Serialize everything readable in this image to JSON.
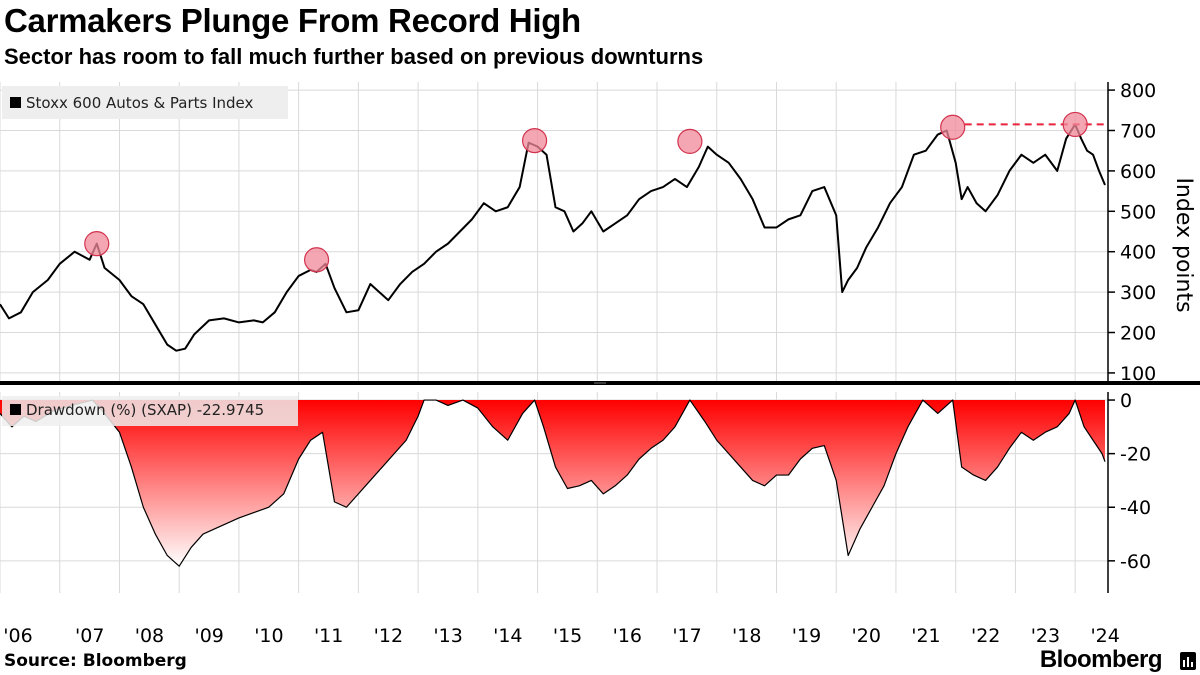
{
  "header": {
    "title": "Carmakers Plunge From Record High",
    "subtitle": "Sector has room to fall much further based on previous downturns"
  },
  "footer": {
    "source": "Source: Bloomberg",
    "brand": "Bloomberg"
  },
  "colors": {
    "line": "#000000",
    "grid": "#d9d9d9",
    "drawdown_fill_top": "#ff0000",
    "drawdown_fill_bottom": "#ffffff",
    "peak_marker": "#f08a9a",
    "dashed_line": "#e8243c",
    "legend_bg": "#eeeeee"
  },
  "chart_data": [
    {
      "type": "line",
      "legend": "Stoxx 600 Autos & Parts Index",
      "ylabel": "Index points",
      "ylim": [
        80,
        820
      ],
      "yticks": [
        "100",
        "200",
        "300",
        "400",
        "500",
        "600",
        "700",
        "800"
      ],
      "x_tick_labels": [
        "'06",
        "'07",
        "'08",
        "'09",
        "'10",
        "'11",
        "'12",
        "'13",
        "'14",
        "'15",
        "'16",
        "'17",
        "'18",
        "'19",
        "'20",
        "'21",
        "'22",
        "'23",
        "'24"
      ],
      "xlim": [
        2006.0,
        2024.55
      ],
      "grid": true,
      "legend_position": "top-left",
      "x": [
        2006.0,
        2006.15,
        2006.35,
        2006.55,
        2006.8,
        2007.0,
        2007.25,
        2007.5,
        2007.62,
        2007.75,
        2008.0,
        2008.2,
        2008.4,
        2008.6,
        2008.8,
        2008.95,
        2009.1,
        2009.25,
        2009.5,
        2009.75,
        2010.0,
        2010.25,
        2010.4,
        2010.6,
        2010.8,
        2011.0,
        2011.2,
        2011.3,
        2011.45,
        2011.6,
        2011.8,
        2012.0,
        2012.2,
        2012.35,
        2012.5,
        2012.7,
        2012.9,
        2013.1,
        2013.3,
        2013.5,
        2013.7,
        2013.9,
        2014.1,
        2014.3,
        2014.5,
        2014.7,
        2014.85,
        2015.0,
        2015.15,
        2015.3,
        2015.45,
        2015.6,
        2015.75,
        2015.9,
        2016.1,
        2016.3,
        2016.5,
        2016.7,
        2016.9,
        2017.1,
        2017.3,
        2017.5,
        2017.7,
        2017.85,
        2018.0,
        2018.2,
        2018.4,
        2018.6,
        2018.8,
        2019.0,
        2019.2,
        2019.4,
        2019.6,
        2019.8,
        2020.0,
        2020.1,
        2020.2,
        2020.35,
        2020.5,
        2020.7,
        2020.9,
        2021.1,
        2021.3,
        2021.5,
        2021.7,
        2021.85,
        2022.0,
        2022.1,
        2022.2,
        2022.35,
        2022.5,
        2022.7,
        2022.9,
        2023.1,
        2023.3,
        2023.5,
        2023.7,
        2023.85,
        2024.0,
        2024.1,
        2024.2,
        2024.3,
        2024.4,
        2024.5
      ],
      "values": [
        270,
        235,
        250,
        300,
        330,
        370,
        400,
        380,
        420,
        360,
        330,
        290,
        270,
        220,
        170,
        155,
        160,
        195,
        230,
        235,
        225,
        230,
        225,
        250,
        300,
        340,
        355,
        350,
        370,
        310,
        250,
        255,
        320,
        300,
        280,
        320,
        350,
        370,
        400,
        420,
        450,
        480,
        520,
        500,
        510,
        560,
        670,
        660,
        640,
        510,
        500,
        450,
        470,
        500,
        450,
        470,
        490,
        530,
        550,
        560,
        580,
        560,
        610,
        660,
        640,
        620,
        580,
        530,
        460,
        460,
        480,
        490,
        550,
        560,
        490,
        300,
        330,
        360,
        410,
        460,
        520,
        560,
        640,
        650,
        690,
        700,
        620,
        530,
        560,
        520,
        500,
        540,
        600,
        640,
        620,
        640,
        600,
        680,
        715,
        680,
        650,
        640,
        600,
        565
      ],
      "peak_markers": [
        {
          "x": 2007.62,
          "y": 420
        },
        {
          "x": 2011.3,
          "y": 380
        },
        {
          "x": 2014.95,
          "y": 675
        },
        {
          "x": 2017.55,
          "y": 673
        },
        {
          "x": 2021.95,
          "y": 708
        },
        {
          "x": 2024.0,
          "y": 715
        }
      ],
      "reference_line": {
        "y": 715,
        "style": "dashed"
      }
    },
    {
      "type": "area",
      "legend": "Drawdown (%) (SXAP) -22.9745",
      "ylim": [
        -72,
        3
      ],
      "yticks": [
        "0",
        "-20",
        "-40",
        "-60"
      ],
      "xlim": [
        2006.0,
        2024.55
      ],
      "grid": true,
      "legend_position": "top-left",
      "x": [
        2006.0,
        2006.2,
        2006.4,
        2006.6,
        2006.9,
        2007.2,
        2007.55,
        2007.75,
        2008.0,
        2008.2,
        2008.4,
        2008.6,
        2008.8,
        2009.0,
        2009.2,
        2009.4,
        2009.6,
        2009.8,
        2010.0,
        2010.25,
        2010.5,
        2010.75,
        2011.0,
        2011.2,
        2011.4,
        2011.6,
        2011.8,
        2012.0,
        2012.2,
        2012.4,
        2012.6,
        2012.8,
        2013.0,
        2013.1,
        2013.3,
        2013.5,
        2013.75,
        2014.0,
        2014.25,
        2014.5,
        2014.75,
        2014.95,
        2015.1,
        2015.3,
        2015.5,
        2015.7,
        2015.9,
        2016.1,
        2016.3,
        2016.5,
        2016.7,
        2016.9,
        2017.1,
        2017.3,
        2017.55,
        2017.8,
        2018.0,
        2018.2,
        2018.4,
        2018.6,
        2018.8,
        2019.0,
        2019.2,
        2019.4,
        2019.6,
        2019.8,
        2020.0,
        2020.2,
        2020.4,
        2020.6,
        2020.8,
        2021.0,
        2021.2,
        2021.45,
        2021.7,
        2021.95,
        2022.1,
        2022.3,
        2022.5,
        2022.7,
        2022.9,
        2023.1,
        2023.3,
        2023.5,
        2023.7,
        2023.9,
        2024.0,
        2024.15,
        2024.3,
        2024.45,
        2024.5
      ],
      "values": [
        -5,
        -10,
        -6,
        -8,
        -4,
        -2,
        0,
        -5,
        -12,
        -25,
        -40,
        -50,
        -58,
        -62,
        -55,
        -50,
        -48,
        -46,
        -44,
        -42,
        -40,
        -35,
        -22,
        -15,
        -12,
        -38,
        -40,
        -35,
        -30,
        -25,
        -20,
        -15,
        -6,
        0,
        0,
        -2,
        0,
        -3,
        -10,
        -15,
        -5,
        0,
        -10,
        -25,
        -33,
        -32,
        -30,
        -35,
        -32,
        -28,
        -22,
        -18,
        -15,
        -10,
        0,
        -8,
        -15,
        -20,
        -25,
        -30,
        -32,
        -28,
        -28,
        -22,
        -18,
        -17,
        -30,
        -58,
        -48,
        -40,
        -32,
        -20,
        -10,
        0,
        -5,
        0,
        -25,
        -28,
        -30,
        -25,
        -18,
        -12,
        -15,
        -12,
        -10,
        -5,
        0,
        -10,
        -15,
        -20,
        -23
      ]
    }
  ]
}
